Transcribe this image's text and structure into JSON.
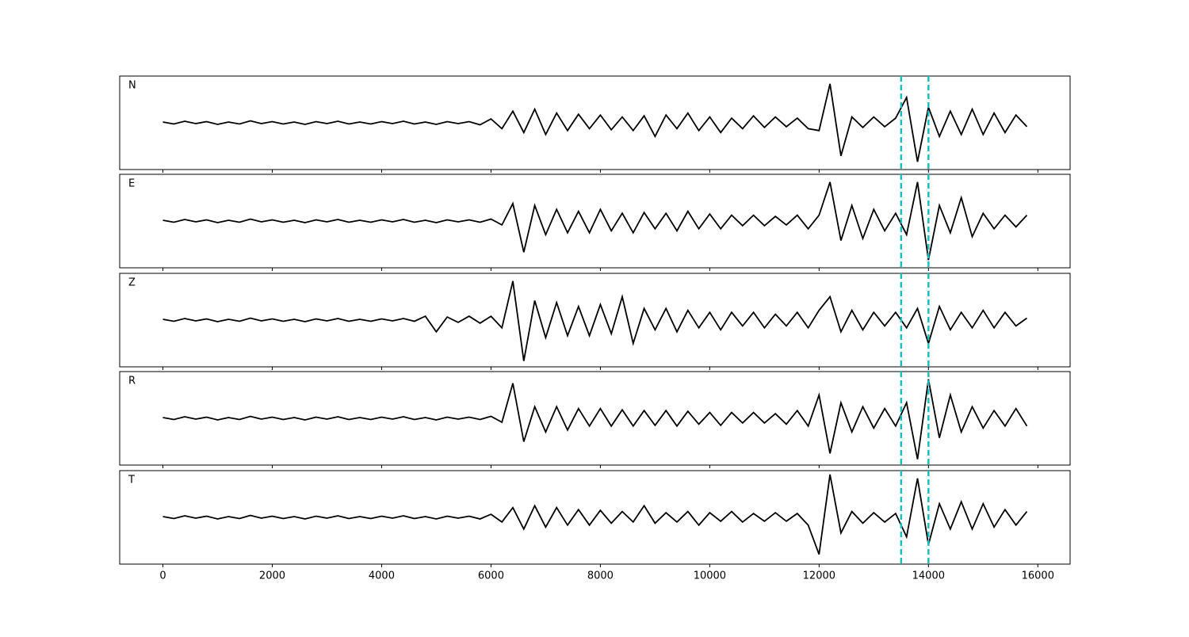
{
  "chart_data": {
    "type": "line",
    "layout": "stacked",
    "x": [
      0,
      200,
      400,
      600,
      800,
      1000,
      1200,
      1400,
      1600,
      1800,
      2000,
      2200,
      2400,
      2600,
      2800,
      3000,
      3200,
      3400,
      3600,
      3800,
      4000,
      4200,
      4400,
      4600,
      4800,
      5000,
      5200,
      5400,
      5600,
      5800,
      6000,
      6200,
      6400,
      6600,
      6800,
      7000,
      7200,
      7400,
      7600,
      7800,
      8000,
      8200,
      8400,
      8600,
      8800,
      9000,
      9200,
      9400,
      9600,
      9800,
      10000,
      10200,
      10400,
      10600,
      10800,
      11000,
      11200,
      11400,
      11600,
      11800,
      12000,
      12200,
      12400,
      12600,
      12800,
      13000,
      13200,
      13400,
      13600,
      13800,
      14000,
      14200,
      14400,
      14600,
      14800,
      15000,
      15200,
      15400,
      15600,
      15800
    ],
    "series": [
      {
        "name": "N",
        "color": "#000000",
        "values": [
          0.02,
          -0.03,
          0.04,
          -0.02,
          0.03,
          -0.04,
          0.02,
          -0.03,
          0.05,
          -0.02,
          0.03,
          -0.03,
          0.02,
          -0.04,
          0.03,
          -0.02,
          0.04,
          -0.03,
          0.02,
          -0.03,
          0.03,
          -0.02,
          0.04,
          -0.03,
          0.02,
          -0.04,
          0.03,
          -0.02,
          0.03,
          -0.05,
          0.1,
          -0.15,
          0.3,
          -0.25,
          0.35,
          -0.3,
          0.25,
          -0.2,
          0.22,
          -0.15,
          0.2,
          -0.18,
          0.15,
          -0.2,
          0.18,
          -0.35,
          0.2,
          -0.15,
          0.25,
          -0.2,
          0.15,
          -0.25,
          0.12,
          -0.15,
          0.18,
          -0.12,
          0.15,
          -0.1,
          0.12,
          -0.15,
          -0.2,
          1.0,
          -0.85,
          0.15,
          -0.12,
          0.15,
          -0.1,
          0.12,
          0.65,
          -1.0,
          0.4,
          -0.35,
          0.3,
          -0.3,
          0.35,
          -0.3,
          0.25,
          -0.25,
          0.2,
          -0.1
        ]
      },
      {
        "name": "E",
        "color": "#000000",
        "values": [
          0.02,
          -0.03,
          0.04,
          -0.02,
          0.03,
          -0.04,
          0.02,
          -0.03,
          0.05,
          -0.02,
          0.03,
          -0.03,
          0.02,
          -0.04,
          0.03,
          -0.02,
          0.04,
          -0.03,
          0.02,
          -0.03,
          0.03,
          -0.02,
          0.04,
          -0.03,
          0.02,
          -0.04,
          0.03,
          -0.02,
          0.03,
          -0.03,
          0.05,
          -0.1,
          0.45,
          -0.8,
          0.4,
          -0.35,
          0.3,
          -0.3,
          0.25,
          -0.3,
          0.3,
          -0.25,
          0.2,
          -0.3,
          0.22,
          -0.2,
          0.2,
          -0.25,
          0.25,
          -0.2,
          0.18,
          -0.2,
          0.15,
          -0.12,
          0.15,
          -0.12,
          0.12,
          -0.1,
          0.15,
          -0.2,
          0.15,
          1.0,
          -0.5,
          0.4,
          -0.45,
          0.3,
          -0.25,
          0.2,
          -0.35,
          1.0,
          -1.0,
          0.4,
          -0.3,
          0.6,
          -0.4,
          0.2,
          -0.2,
          0.15,
          -0.15,
          0.15
        ]
      },
      {
        "name": "Z",
        "color": "#000000",
        "values": [
          0.02,
          -0.03,
          0.04,
          -0.02,
          0.03,
          -0.04,
          0.02,
          -0.03,
          0.05,
          -0.02,
          0.03,
          -0.03,
          0.02,
          -0.04,
          0.03,
          -0.02,
          0.04,
          -0.03,
          0.02,
          -0.03,
          0.03,
          -0.02,
          0.04,
          -0.03,
          0.1,
          -0.3,
          0.08,
          -0.06,
          0.1,
          -0.08,
          0.1,
          -0.2,
          1.0,
          -1.05,
          0.5,
          -0.45,
          0.45,
          -0.4,
          0.35,
          -0.4,
          0.4,
          -0.35,
          0.6,
          -0.6,
          0.3,
          -0.25,
          0.3,
          -0.3,
          0.25,
          -0.2,
          0.2,
          -0.25,
          0.2,
          -0.15,
          0.2,
          -0.2,
          0.15,
          -0.15,
          0.2,
          -0.2,
          0.25,
          0.6,
          -0.3,
          0.25,
          -0.25,
          0.2,
          -0.15,
          0.2,
          -0.2,
          0.3,
          -0.6,
          0.35,
          -0.25,
          0.2,
          -0.2,
          0.25,
          -0.2,
          0.2,
          -0.15,
          0.05
        ]
      },
      {
        "name": "R",
        "color": "#000000",
        "values": [
          0.02,
          -0.03,
          0.04,
          -0.02,
          0.03,
          -0.04,
          0.02,
          -0.03,
          0.05,
          -0.02,
          0.03,
          -0.03,
          0.02,
          -0.04,
          0.03,
          -0.02,
          0.04,
          -0.03,
          0.02,
          -0.03,
          0.03,
          -0.02,
          0.04,
          -0.03,
          0.02,
          -0.04,
          0.03,
          -0.02,
          0.03,
          -0.03,
          0.05,
          -0.1,
          0.9,
          -0.6,
          0.3,
          -0.35,
          0.3,
          -0.3,
          0.25,
          -0.2,
          0.25,
          -0.2,
          0.22,
          -0.2,
          0.2,
          -0.18,
          0.2,
          -0.2,
          0.18,
          -0.15,
          0.15,
          -0.18,
          0.15,
          -0.12,
          0.15,
          -0.12,
          0.12,
          -0.15,
          0.2,
          -0.2,
          0.6,
          -0.9,
          0.4,
          -0.35,
          0.3,
          -0.25,
          0.25,
          -0.2,
          0.4,
          -1.05,
          1.0,
          -0.5,
          0.6,
          -0.35,
          0.3,
          -0.25,
          0.2,
          -0.2,
          0.25,
          -0.2
        ]
      },
      {
        "name": "T",
        "color": "#000000",
        "values": [
          0.02,
          -0.03,
          0.04,
          -0.02,
          0.03,
          -0.04,
          0.02,
          -0.03,
          0.05,
          -0.02,
          0.03,
          -0.03,
          0.02,
          -0.04,
          0.03,
          -0.02,
          0.04,
          -0.03,
          0.02,
          -0.03,
          0.03,
          -0.02,
          0.04,
          -0.03,
          0.02,
          -0.04,
          0.03,
          -0.02,
          0.03,
          -0.04,
          0.08,
          -0.12,
          0.25,
          -0.3,
          0.3,
          -0.25,
          0.25,
          -0.2,
          0.2,
          -0.2,
          0.18,
          -0.15,
          0.15,
          -0.12,
          0.3,
          -0.15,
          0.12,
          -0.12,
          0.15,
          -0.2,
          0.12,
          -0.1,
          0.15,
          -0.12,
          0.1,
          -0.1,
          0.12,
          -0.1,
          0.1,
          -0.2,
          -0.95,
          1.1,
          -0.4,
          0.15,
          -0.15,
          0.12,
          -0.12,
          0.1,
          -0.5,
          1.0,
          -0.7,
          0.35,
          -0.3,
          0.4,
          -0.3,
          0.35,
          -0.25,
          0.2,
          -0.2,
          0.15
        ]
      }
    ],
    "xlim": [
      -790,
      16590
    ],
    "xticks": [
      0,
      2000,
      4000,
      6000,
      8000,
      10000,
      12000,
      14000,
      16000
    ],
    "ylim": [
      -1.2,
      1.2
    ],
    "vlines": [
      13500,
      14000
    ],
    "vline_color": "#17bfbf"
  }
}
